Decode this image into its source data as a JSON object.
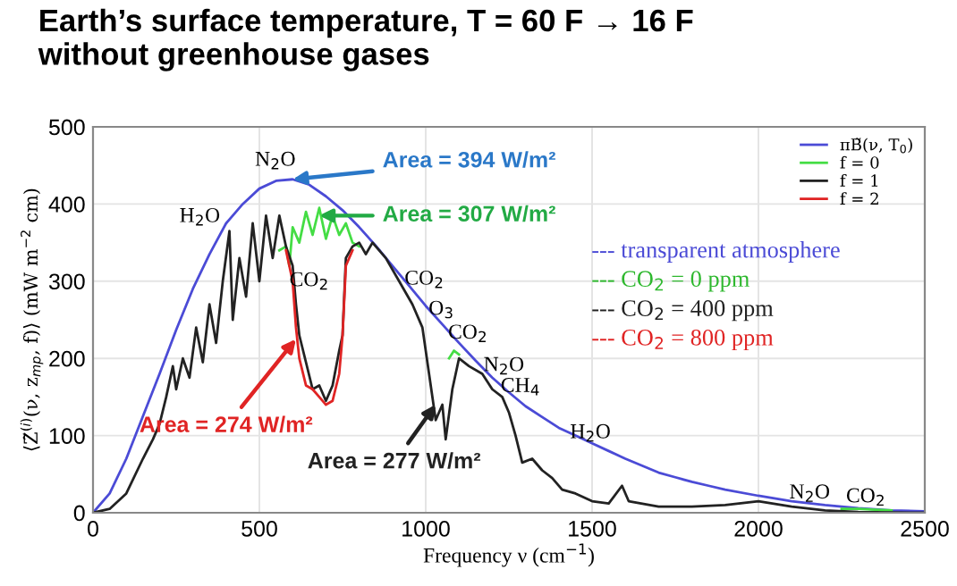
{
  "chart_data": {
    "type": "line",
    "title": "Earth’s surface temperature, T = 60 F → 16 F\nwithout greenhouse gases",
    "xlabel": "Frequency ν (cm$^{−1}$)",
    "ylabel": "⟨Z̃$^{(i)}$(ν, z$_{mp}$, f)⟩ (mW m$^{−2}$ cm)",
    "xlim": [
      0,
      2500
    ],
    "ylim": [
      0,
      500
    ],
    "xticks": [
      0,
      500,
      1000,
      1500,
      2000,
      2500
    ],
    "yticks": [
      0,
      100,
      200,
      300,
      400,
      500
    ],
    "grid": true,
    "legend": "top right",
    "marker": "none",
    "line_style": "solid",
    "series": [
      {
        "name": "πB̃(ν, T$_{0}$)",
        "color": "#4b4bd6",
        "x": [
          0,
          50,
          100,
          150,
          200,
          250,
          300,
          350,
          400,
          450,
          500,
          550,
          600,
          650,
          700,
          750,
          800,
          850,
          900,
          950,
          1000,
          1050,
          1100,
          1150,
          1200,
          1250,
          1300,
          1350,
          1400,
          1450,
          1500,
          1550,
          1600,
          1650,
          1700,
          1750,
          1800,
          1850,
          1900,
          2000,
          2100,
          2200,
          2300,
          2400,
          2500
        ],
        "values": [
          0,
          25,
          70,
          125,
          180,
          237,
          290,
          335,
          375,
          400,
          420,
          430,
          432,
          425,
          410,
          392,
          370,
          346,
          320,
          294,
          268,
          244,
          220,
          197,
          175,
          156,
          138,
          124,
          110,
          100,
          90,
          80,
          70,
          61,
          52,
          46,
          40,
          35,
          30,
          22,
          15,
          10,
          6,
          3,
          2
        ]
      },
      {
        "name": "f = 0",
        "color": "#44dd44",
        "x": [
          560,
          580,
          590,
          600,
          620,
          640,
          660,
          680,
          700,
          720,
          740,
          760,
          780,
          800,
          900,
          1070,
          1085,
          1100,
          1500,
          2250,
          2300,
          2350,
          2400
        ],
        "values": [
          340,
          345,
          320,
          370,
          350,
          390,
          360,
          395,
          355,
          385,
          360,
          375,
          350,
          345,
          null,
          200,
          210,
          205,
          null,
          5,
          5,
          4,
          3
        ]
      },
      {
        "name": "f = 1",
        "color": "#222222",
        "x": [
          0,
          50,
          100,
          150,
          180,
          200,
          220,
          240,
          250,
          270,
          290,
          310,
          330,
          350,
          370,
          390,
          410,
          420,
          440,
          460,
          480,
          500,
          520,
          540,
          560,
          580,
          600,
          610,
          620,
          640,
          660,
          680,
          700,
          720,
          740,
          750,
          760,
          780,
          800,
          820,
          840,
          880,
          920,
          960,
          990,
          1010,
          1030,
          1050,
          1060,
          1080,
          1100,
          1130,
          1170,
          1200,
          1230,
          1250,
          1270,
          1290,
          1320,
          1350,
          1380,
          1410,
          1450,
          1500,
          1550,
          1590,
          1610,
          1700,
          1800,
          1900,
          2000,
          2100,
          2200,
          2300,
          2500
        ],
        "values": [
          0,
          5,
          25,
          70,
          95,
          115,
          150,
          190,
          160,
          200,
          175,
          240,
          195,
          270,
          220,
          300,
          365,
          250,
          330,
          280,
          375,
          300,
          385,
          330,
          385,
          345,
          320,
          270,
          230,
          195,
          160,
          165,
          145,
          165,
          210,
          230,
          330,
          345,
          350,
          335,
          350,
          330,
          300,
          270,
          240,
          180,
          120,
          140,
          95,
          160,
          200,
          190,
          180,
          160,
          150,
          130,
          100,
          65,
          70,
          55,
          45,
          30,
          25,
          15,
          12,
          35,
          15,
          8,
          8,
          10,
          15,
          8,
          3,
          1,
          0
        ]
      },
      {
        "name": "f = 2",
        "color": "#e02424",
        "x": [
          580,
          600,
          610,
          620,
          640,
          660,
          680,
          700,
          720,
          740,
          750,
          760,
          780
        ],
        "values": [
          340,
          300,
          240,
          200,
          165,
          160,
          150,
          140,
          145,
          180,
          230,
          320,
          340
        ]
      }
    ],
    "annotations": [
      {
        "text": "Area = 394 W/m²",
        "x": 600,
        "y": 432
      },
      {
        "text": "Area = 307 W/m²",
        "x": 680,
        "y": 385
      },
      {
        "text": "Area = 274 W/m²",
        "x": 610,
        "y": 225
      },
      {
        "text": "Area = 277 W/m²",
        "x": 1030,
        "y": 140
      },
      "N$_{2}$O",
      "H$_{2}$O",
      "CO$_{2}$",
      "CO$_{2}$",
      "O$_{3}$",
      "CO$_{2}$",
      "N$_{2}$O",
      "CH$_{4}$",
      "H$_{2}$O",
      "N$_{2}$O",
      "CO$_{2}$",
      "--- transparent atmosphere",
      "--- CO$_{2}$ = 0 ppm",
      "--- CO$_{2}$ = 400 ppm",
      "--- CO$_{2}$ = 800 ppm"
    ]
  }
}
